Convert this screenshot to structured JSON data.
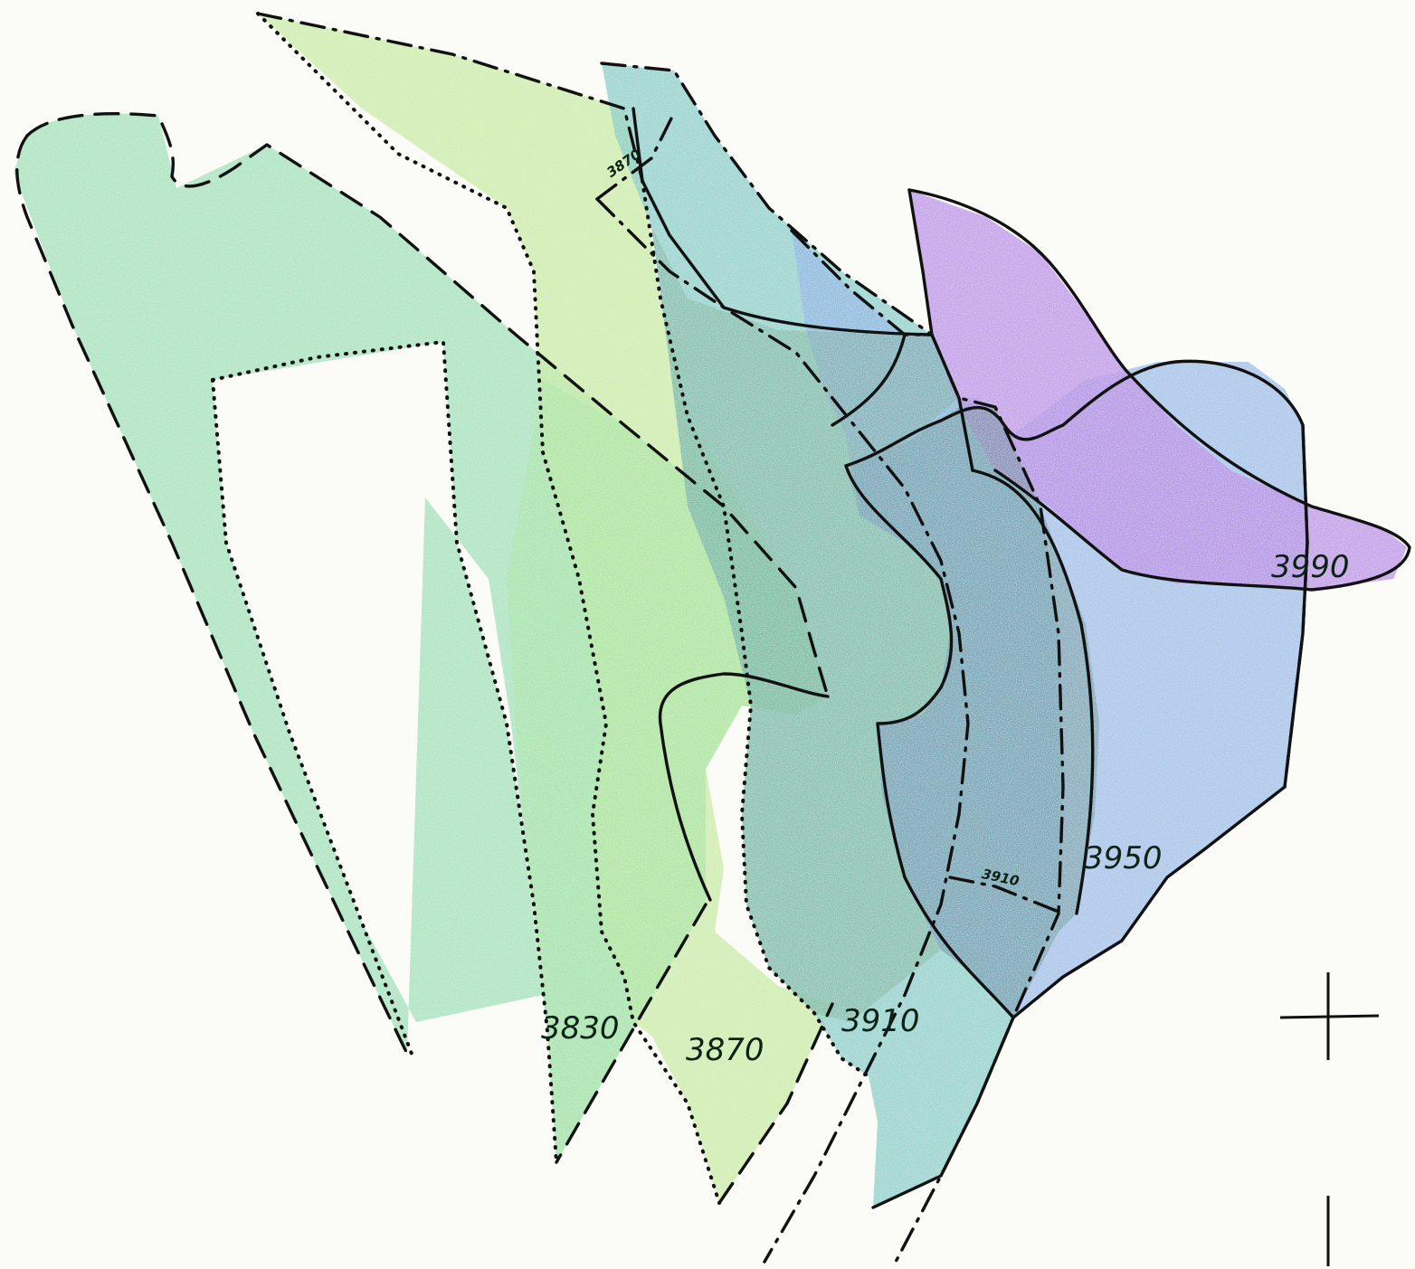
{
  "map": {
    "areas": [
      {
        "id": "zone-3830",
        "label": "3830",
        "color": "#9fe0b8",
        "border": "dash"
      },
      {
        "id": "zone-3870",
        "label": "3870",
        "color": "#bfe89f",
        "border": "dot"
      },
      {
        "id": "zone-3910",
        "label": "3910",
        "color": "#7ec9c8",
        "border": "dashdot"
      },
      {
        "id": "zone-3950",
        "label": "3950",
        "color": "#8fb3e6",
        "border": "solid"
      },
      {
        "id": "zone-3990",
        "label": "3990",
        "color": "#b48ae3",
        "border": "solid"
      }
    ],
    "small_labels": [
      "3870",
      "3910"
    ],
    "colors": {
      "background": "#fbfbf8",
      "line": "#111111"
    },
    "marks": [
      "plus-marker",
      "tick-marker"
    ]
  }
}
